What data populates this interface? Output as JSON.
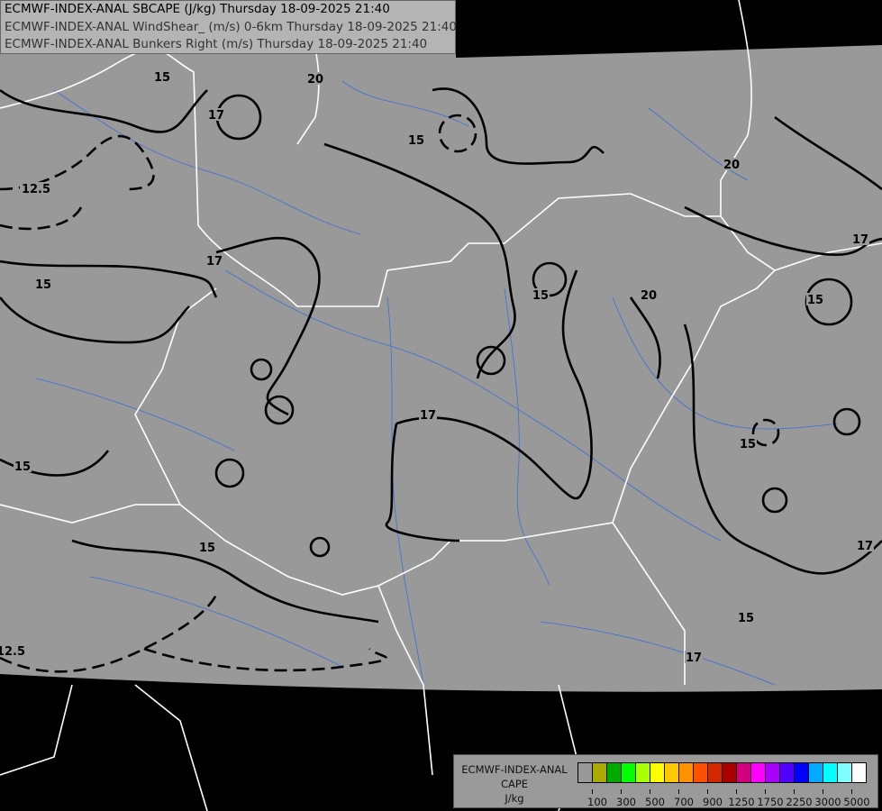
{
  "header": {
    "lines": [
      "ECMWF-INDEX-ANAL SBCAPE (J/kg) Thursday 18-09-2025 21:40",
      "ECMWF-INDEX-ANAL WindShear_ (m/s) 0-6km Thursday 18-09-2025 21:40",
      "ECMWF-INDEX-ANAL Bunkers Right (m/s) Thursday 18-09-2025 21:40"
    ]
  },
  "legend": {
    "title_lines": [
      "ECMWF-INDEX-ANAL",
      "CAPE",
      "J/kg"
    ],
    "colors": [
      "#999999",
      "#aaaa00",
      "#00aa00",
      "#00ff00",
      "#aaff00",
      "#ffff00",
      "#ffc800",
      "#ff9000",
      "#ff5000",
      "#d22800",
      "#aa0000",
      "#d2007e",
      "#ff00ff",
      "#aa00ff",
      "#5000ff",
      "#0000ff",
      "#00aaff",
      "#00ffff",
      "#80ffff",
      "#ffffff"
    ],
    "tick_labels": [
      "100",
      "300",
      "500",
      "700",
      "900",
      "1250",
      "1750",
      "2250",
      "3000",
      "5000"
    ]
  },
  "map": {
    "domain_color": "#999999",
    "outside_color": "#000000",
    "border_color": "#ffffff",
    "river_color": "#3a6fd8",
    "contour_color": "#000000",
    "contour_labels": [
      "15",
      "17",
      "20",
      "12.5",
      "15",
      "17",
      "15",
      "15",
      "17",
      "20",
      "15",
      "20",
      "17",
      "15",
      "15",
      "17",
      "15",
      "17",
      "15",
      "12.5"
    ]
  }
}
